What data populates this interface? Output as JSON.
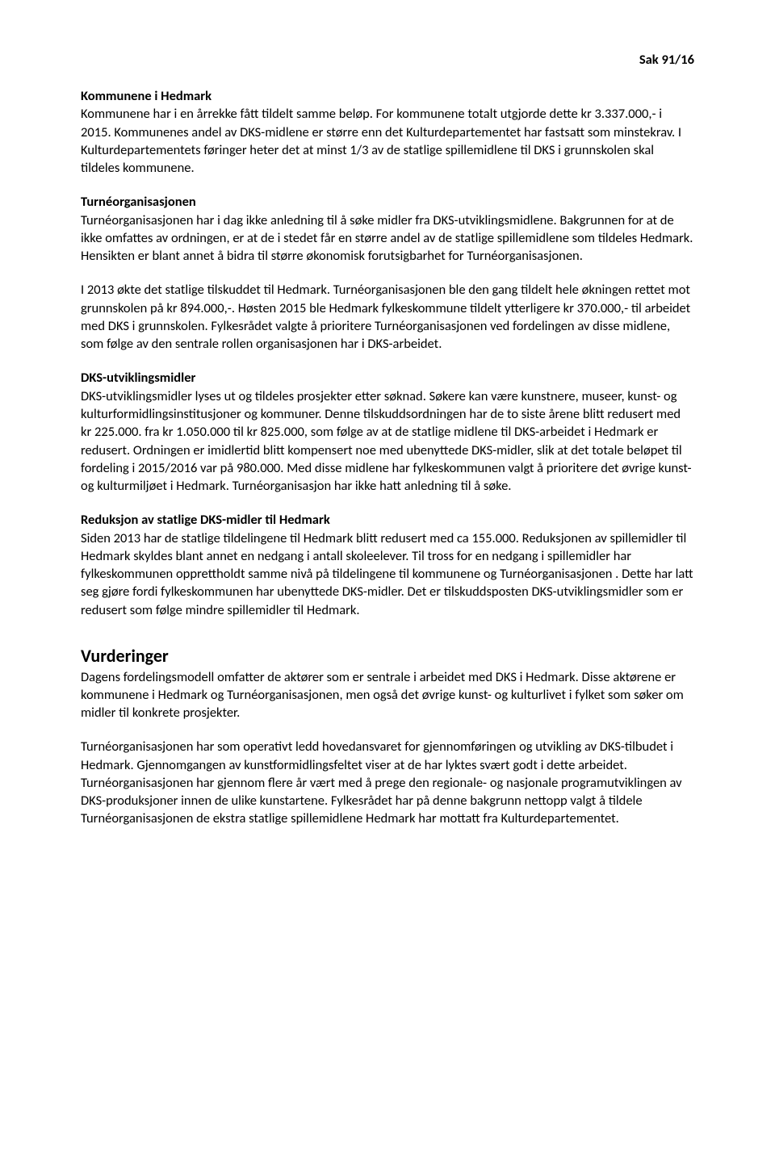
{
  "header": {
    "case_number": "Sak 91/16"
  },
  "sections": {
    "kommunene": {
      "heading": "Kommunene i Hedmark",
      "p1": "Kommunene har i en årrekke fått tildelt samme beløp. For kommunene totalt utgjorde dette kr 3.337.000,-  i 2015. Kommunenes andel av DKS-midlene er større enn det Kulturdepartementet har fastsatt som minstekrav. I Kulturdepartementets føringer heter det at minst 1/3 av de statlige spillemidlene til DKS i grunnskolen skal tildeles kommunene."
    },
    "turne": {
      "heading": "Turnéorganisasjonen",
      "p1": "Turnéorganisasjonen har i dag ikke anledning til å søke midler fra DKS-utviklingsmidlene. Bakgrunnen for at de ikke omfattes av ordningen, er at de i stedet får en større andel av de statlige spillemidlene som tildeles Hedmark. Hensikten er blant annet å bidra til større økonomisk forutsigbarhet for Turnéorganisasjonen.",
      "p2": "I 2013 økte det statlige tilskuddet til Hedmark. Turnéorganisasjonen ble den gang tildelt hele økningen rettet mot grunnskolen på kr 894.000,-. Høsten 2015 ble Hedmark fylkeskommune tildelt ytterligere kr 370.000,- til arbeidet med DKS i grunnskolen. Fylkesrådet valgte å prioritere Turnéorganisasjonen ved fordelingen av disse midlene, som følge av den sentrale rollen organisasjonen har i DKS-arbeidet."
    },
    "dks_utv": {
      "heading": "DKS-utviklingsmidler",
      "p1": "DKS-utviklingsmidler lyses ut og tildeles prosjekter etter søknad. Søkere kan være kunstnere, museer, kunst- og kulturformidlingsinstitusjoner og kommuner. Denne tilskuddsordningen har de to siste årene blitt redusert med kr 225.000. fra kr 1.050.000 til kr 825.000, som følge av at de statlige midlene til DKS-arbeidet i Hedmark er redusert. Ordningen er imidlertid blitt kompensert noe med ubenyttede DKS-midler, slik at det totale beløpet til fordeling i 2015/2016 var på 980.000. Med disse midlene har fylkeskommunen valgt å prioritere det øvrige kunst- og kulturmiljøet i Hedmark. Turnéorganisasjon har ikke hatt anledning til å søke."
    },
    "reduksjon": {
      "heading": "Reduksjon av statlige DKS-midler til Hedmark",
      "p1": "Siden 2013 har de statlige tildelingene til Hedmark blitt redusert med ca 155.000. Reduksjonen av spillemidler til Hedmark skyldes blant annet en nedgang i antall skoleelever. Til tross for en nedgang i spillemidler har fylkeskommunen opprettholdt samme nivå på tildelingene til kommunene og  Turnéorganisasjonen . Dette har latt seg gjøre fordi fylkeskommunen har ubenyttede DKS-midler. Det er tilskuddsposten DKS-utviklingsmidler som er redusert som følge mindre spillemidler til Hedmark."
    },
    "vurderinger": {
      "heading": "Vurderinger",
      "p1": "Dagens fordelingsmodell omfatter de aktører som er sentrale i arbeidet med DKS i Hedmark. Disse aktørene er kommunene i Hedmark og Turnéorganisasjonen, men også det øvrige kunst- og kulturlivet i fylket som søker om midler til konkrete prosjekter.",
      "p2": "Turnéorganisasjonen har som operativt ledd hovedansvaret for gjennomføringen og utvikling av DKS-tilbudet i Hedmark. Gjennomgangen av kunstformidlingsfeltet viser at de har lyktes svært godt i dette arbeidet. Turnéorganisasjonen har gjennom flere år vært med å prege den regionale- og nasjonale programutviklingen av DKS-produksjoner innen de ulike kunstartene. Fylkesrådet har på denne bakgrunn nettopp valgt å tildele Turnéorganisasjonen de ekstra statlige spillemidlene Hedmark har mottatt fra Kulturdepartementet."
    }
  }
}
